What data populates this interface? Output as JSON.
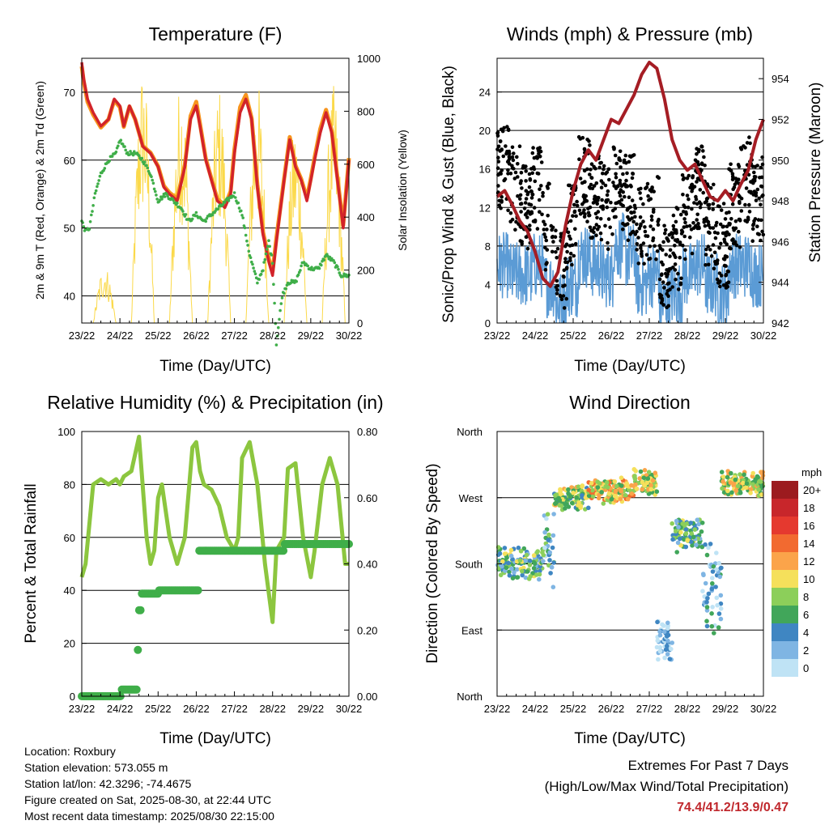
{
  "info": {
    "location": "Location: Roxbury",
    "elevation": "Station elevation: 573.055 m",
    "latlon": "Station lat/lon: 42.3296; -74.4675",
    "created": "Figure created on Sat, 2025-08-30, at 22:44 UTC",
    "recent": "Most recent data timestamp: 2025/08/30 22:15:00"
  },
  "extremes": {
    "title": "Extremes For Past 7 Days",
    "subtitle": "(High/Low/Max Wind/Total Precipitation)",
    "values": "74.4/41.2/13.9/0.47",
    "color": "#c0282d"
  },
  "chart_data": [
    {
      "type": "line",
      "title": "Temperature (F)",
      "xlabel": "Time (Day/UTC)",
      "ylabel": "2m & 9m T (Red, Orange) & 2m Td (Green)",
      "ylabel_right": "Solar Insolation (Yellow)",
      "x_ticks": [
        "23/22",
        "24/22",
        "25/22",
        "26/22",
        "27/22",
        "28/22",
        "29/22",
        "30/22"
      ],
      "x_range": [
        0,
        7
      ],
      "ylim": [
        36,
        75
      ],
      "y_ticks": [
        40,
        50,
        60,
        70
      ],
      "ylim_right": [
        0,
        1000
      ],
      "y_ticks_right": [
        0,
        200,
        400,
        600,
        800,
        1000
      ],
      "grid": "horizontal",
      "series": [
        {
          "color": "#d2232a",
          "x": [
            0,
            0.05,
            0.15,
            0.3,
            0.5,
            0.7,
            0.85,
            1.0,
            1.1,
            1.25,
            1.4,
            1.6,
            1.8,
            2.0,
            2.15,
            2.3,
            2.5,
            2.7,
            2.85,
            3.0,
            3.1,
            3.25,
            3.4,
            3.55,
            3.75,
            3.9,
            4.0,
            4.15,
            4.3,
            4.45,
            4.6,
            4.75,
            4.9,
            5.0,
            5.1,
            5.3,
            5.45,
            5.6,
            5.75,
            5.9,
            6.0,
            6.1,
            6.25,
            6.4,
            6.55,
            6.7,
            6.85,
            7.0
          ],
          "values": [
            74.4,
            72,
            69,
            67,
            65,
            66,
            69,
            68,
            65,
            68,
            66,
            62,
            61,
            59,
            56,
            55,
            54,
            59,
            66,
            68,
            65,
            60,
            57,
            54,
            53,
            55,
            61,
            67,
            69,
            66,
            56,
            49,
            45,
            43,
            48,
            57,
            63,
            59,
            57,
            54,
            57,
            60,
            64,
            67,
            64,
            57,
            50,
            60
          ]
        },
        {
          "color": "#f7941d",
          "x": [
            0,
            0.05,
            0.15,
            0.3,
            0.5,
            0.7,
            0.85,
            1.0,
            1.1,
            1.25,
            1.4,
            1.6,
            1.8,
            2.0,
            2.15,
            2.3,
            2.5,
            2.7,
            2.85,
            3.0,
            3.1,
            3.25,
            3.4,
            3.55,
            3.75,
            3.9,
            4.0,
            4.15,
            4.3,
            4.45,
            4.6,
            4.75,
            4.9,
            5.0,
            5.1,
            5.3,
            5.45,
            5.6,
            5.75,
            5.9,
            6.0,
            6.1,
            6.25,
            6.4,
            6.55,
            6.7,
            6.85,
            7.0
          ],
          "values": [
            73.8,
            71.6,
            68.6,
            66.7,
            64.8,
            66,
            68.8,
            67.8,
            64.9,
            67.9,
            66,
            62.1,
            61.1,
            59.1,
            56.2,
            55.2,
            54.3,
            59.3,
            66.5,
            68.6,
            65.3,
            60.2,
            57.2,
            54.3,
            53.3,
            55.4,
            61.6,
            67.8,
            69.6,
            66.2,
            56.4,
            49.4,
            45.5,
            43.6,
            48.5,
            57.2,
            63.4,
            59.2,
            57.2,
            54.4,
            57.3,
            60.4,
            64.6,
            67.4,
            64.3,
            57.3,
            50.4,
            60.3
          ]
        },
        {
          "color": "#3fae49",
          "x": [
            0,
            0.1,
            0.2,
            0.35,
            0.5,
            0.7,
            0.9,
            1.0,
            1.2,
            1.4,
            1.6,
            1.8,
            2.0,
            2.2,
            2.4,
            2.6,
            2.8,
            3.0,
            3.2,
            3.4,
            3.6,
            3.8,
            4.0,
            4.2,
            4.4,
            4.6,
            4.75,
            4.9,
            5.0,
            5.1,
            5.25,
            5.4,
            5.6,
            5.8,
            6.0,
            6.2,
            6.4,
            6.6,
            6.8,
            7.0
          ],
          "values": [
            51,
            49.5,
            50,
            55,
            58,
            60,
            61,
            63,
            61,
            61,
            60,
            58,
            54,
            55,
            54,
            53,
            51,
            52,
            51,
            52,
            53,
            54,
            55,
            52,
            46,
            42,
            44,
            48,
            45,
            33,
            40,
            42,
            42,
            45,
            44,
            44,
            46,
            45,
            43,
            43
          ]
        }
      ],
      "solar_peaks": [
        {
          "day": 1.6,
          "peak": 980
        },
        {
          "day": 2.6,
          "peak": 930
        },
        {
          "day": 3.6,
          "peak": 900
        },
        {
          "day": 4.6,
          "peak": 920
        },
        {
          "day": 5.6,
          "peak": 760
        },
        {
          "day": 6.6,
          "peak": 900
        },
        {
          "day": 0.6,
          "peak": 220
        }
      ],
      "solar_color": "#fbd94a"
    },
    {
      "type": "line",
      "title": "Winds (mph) & Pressure (mb)",
      "xlabel": "Time (Day/UTC)",
      "ylabel": "Sonic/Prop Wind & Gust (Blue, Black)",
      "ylabel_right": "Station Pressure (Maroon)",
      "x_ticks": [
        "23/22",
        "24/22",
        "25/22",
        "26/22",
        "27/22",
        "28/22",
        "29/22",
        "30/22"
      ],
      "x_range": [
        0,
        7
      ],
      "ylim": [
        0,
        27.5
      ],
      "y_ticks": [
        0,
        4,
        8,
        12,
        16,
        20,
        24
      ],
      "ylim_right": [
        942,
        955
      ],
      "y_ticks_right": [
        942,
        944,
        946,
        948,
        950,
        952,
        954
      ],
      "grid": "horizontal",
      "wind_level": [
        6,
        5,
        5,
        6,
        4,
        2,
        4,
        7,
        6,
        5,
        8,
        7,
        4,
        5,
        2,
        3,
        5,
        6,
        4,
        3,
        6,
        6,
        5
      ],
      "gust_level": [
        16,
        14,
        12,
        14,
        10,
        6,
        10,
        15,
        13,
        12,
        14,
        13,
        10,
        11,
        6,
        8,
        11,
        14,
        10,
        8,
        12,
        15,
        13
      ],
      "pressure": {
        "color": "#a51d24",
        "x": [
          0,
          0.2,
          0.4,
          0.6,
          0.8,
          1.0,
          1.2,
          1.4,
          1.6,
          1.8,
          2.0,
          2.2,
          2.4,
          2.6,
          2.8,
          3.0,
          3.2,
          3.4,
          3.6,
          3.8,
          4.0,
          4.2,
          4.4,
          4.6,
          4.8,
          5.0,
          5.2,
          5.4,
          5.6,
          5.8,
          6.0,
          6.2,
          6.4,
          6.6,
          6.8,
          7.0
        ],
        "values": [
          948.2,
          948.5,
          947.8,
          947,
          946.5,
          945.5,
          944.2,
          943.8,
          944.5,
          946.8,
          948.5,
          949.8,
          950.5,
          950,
          951,
          952,
          951.8,
          952.5,
          953.2,
          954.2,
          954.8,
          954.5,
          953,
          951,
          950,
          949.5,
          949.8,
          949,
          948.2,
          948,
          948.5,
          948,
          948.8,
          949.5,
          951,
          952
        ]
      },
      "wind_color": "#5b9bd5",
      "gust_color": "#000000"
    },
    {
      "type": "line",
      "title": "Relative Humidity (%) & Precipitation (in)",
      "xlabel": "Time (Day/UTC)",
      "ylabel": "Percent & Total Rainfall",
      "x_ticks": [
        "23/22",
        "24/22",
        "25/22",
        "26/22",
        "27/22",
        "28/22",
        "29/22",
        "30/22"
      ],
      "x_range": [
        0,
        7
      ],
      "ylim": [
        0,
        100
      ],
      "y_ticks": [
        0,
        20,
        40,
        60,
        80,
        100
      ],
      "ylim_right": [
        0,
        0.8
      ],
      "y_ticks_right": [
        "0.00",
        "0.20",
        "0.40",
        "0.60",
        "0.80"
      ],
      "grid": "horizontal",
      "series": [
        {
          "name": "rh",
          "color": "#8cc63f",
          "x": [
            0,
            0.1,
            0.3,
            0.5,
            0.7,
            0.9,
            1.0,
            1.1,
            1.3,
            1.5,
            1.7,
            1.8,
            1.9,
            2.0,
            2.1,
            2.3,
            2.5,
            2.7,
            2.9,
            3.0,
            3.1,
            3.2,
            3.4,
            3.6,
            3.8,
            4.0,
            4.1,
            4.2,
            4.4,
            4.6,
            4.8,
            5.0,
            5.1,
            5.3,
            5.4,
            5.6,
            5.8,
            6.0,
            6.1,
            6.3,
            6.5,
            6.7,
            6.9,
            7.0
          ],
          "values": [
            45,
            50,
            80,
            82,
            80,
            82,
            80,
            83,
            85,
            98,
            60,
            50,
            55,
            75,
            80,
            60,
            50,
            60,
            94,
            96,
            85,
            80,
            78,
            72,
            60,
            55,
            60,
            90,
            96,
            80,
            50,
            28,
            55,
            60,
            86,
            88,
            60,
            45,
            55,
            80,
            90,
            80,
            50,
            50
          ]
        },
        {
          "name": "precip",
          "color": "#3fae49",
          "x": [
            0,
            1.0,
            1.05,
            1.4,
            1.45,
            1.5,
            1.55,
            2.0,
            3.0,
            3.05,
            3.1,
            4.0,
            5.0,
            5.3,
            6.0,
            7.0
          ],
          "values": [
            0,
            0,
            0.02,
            0.02,
            0.14,
            0.26,
            0.31,
            0.32,
            0.32,
            0.44,
            0.44,
            0.44,
            0.44,
            0.46,
            0.46,
            0.46
          ]
        }
      ]
    },
    {
      "type": "scatter",
      "title": "Wind Direction",
      "xlabel": "Time (Day/UTC)",
      "ylabel": "Direction (Colored By Speed)",
      "x_ticks": [
        "23/22",
        "24/22",
        "25/22",
        "26/22",
        "27/22",
        "28/22",
        "29/22",
        "30/22"
      ],
      "x_range": [
        0,
        7
      ],
      "y_ticks": [
        "North",
        "East",
        "South",
        "West",
        "North"
      ],
      "ylim": [
        0,
        360
      ],
      "legend_title": "mph",
      "legend_labels": [
        "20+",
        "18",
        "16",
        "14",
        "12",
        "10",
        "8",
        "6",
        "4",
        "2",
        "0"
      ],
      "legend_colors": [
        "#9c1b1f",
        "#c8262b",
        "#e5392f",
        "#f26a30",
        "#fba44a",
        "#f5e05b",
        "#8ccf5a",
        "#41a65a",
        "#3f86c2",
        "#7fb5e3",
        "#bfe3f5"
      ],
      "clusters": [
        {
          "x0": 0,
          "x1": 1.2,
          "dir": 180,
          "spread": 25,
          "speed": 6
        },
        {
          "x0": 1.2,
          "x1": 1.5,
          "dir": 200,
          "spread": 60,
          "speed": 4
        },
        {
          "x0": 1.5,
          "x1": 2.4,
          "dir": 270,
          "spread": 20,
          "speed": 8
        },
        {
          "x0": 2.4,
          "x1": 3.6,
          "dir": 280,
          "spread": 20,
          "speed": 10
        },
        {
          "x0": 3.6,
          "x1": 4.2,
          "dir": 290,
          "spread": 20,
          "speed": 9
        },
        {
          "x0": 4.2,
          "x1": 4.6,
          "dir": 80,
          "spread": 40,
          "speed": 1
        },
        {
          "x0": 4.6,
          "x1": 5.4,
          "dir": 220,
          "spread": 25,
          "speed": 6
        },
        {
          "x0": 5.4,
          "x1": 5.9,
          "dir": 150,
          "spread": 80,
          "speed": 3
        },
        {
          "x0": 5.9,
          "x1": 7.0,
          "dir": 290,
          "spread": 20,
          "speed": 9
        }
      ]
    }
  ]
}
